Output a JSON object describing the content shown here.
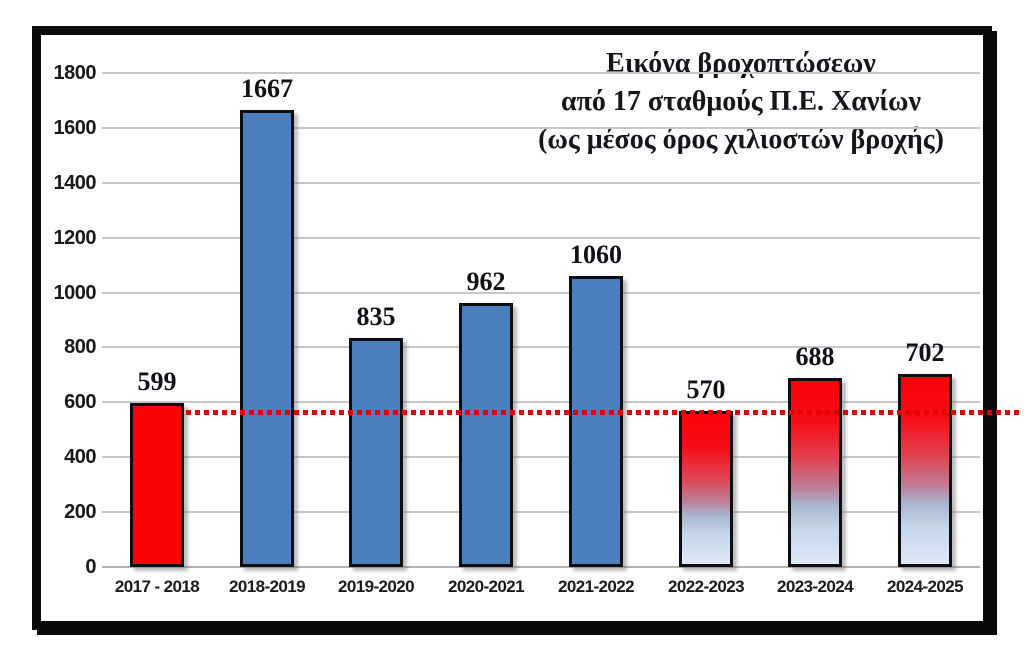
{
  "chart_data": {
    "type": "bar",
    "title_lines": [
      "Εικόνα βροχοπτώσεων",
      "από 17 σταθμούς Π.Ε. Χανίων",
      "(ως μέσος όρος χιλιοστών βροχής)"
    ],
    "categories": [
      "2017 - 2018",
      "2018-2019",
      "2019-2020",
      "2020-2021",
      "2021-2022",
      "2022-2023",
      "2023-2024",
      "2024-2025"
    ],
    "values": [
      599,
      1667,
      835,
      962,
      1060,
      570,
      688,
      702
    ],
    "bar_styles": [
      "red",
      "blue",
      "blue",
      "blue",
      "blue",
      "gradient",
      "gradient",
      "gradient"
    ],
    "y_ticks": [
      0,
      200,
      400,
      600,
      800,
      1000,
      1200,
      1400,
      1600,
      1800
    ],
    "ylim": [
      0,
      1800
    ],
    "grid": true,
    "legend": false,
    "reference_line": {
      "value": 565,
      "style": "dotted",
      "color": "#e30000"
    },
    "colors": {
      "red_bar": "#fb0207",
      "blue_bar": "#4b7fbe",
      "gradient_top": "#fb0207",
      "gradient_bottom": "#dfeaf6",
      "grid": "#c7c7c7",
      "frame": "#0a0a0a",
      "title_text": "#15151d",
      "value_label_text": "#101018"
    }
  }
}
